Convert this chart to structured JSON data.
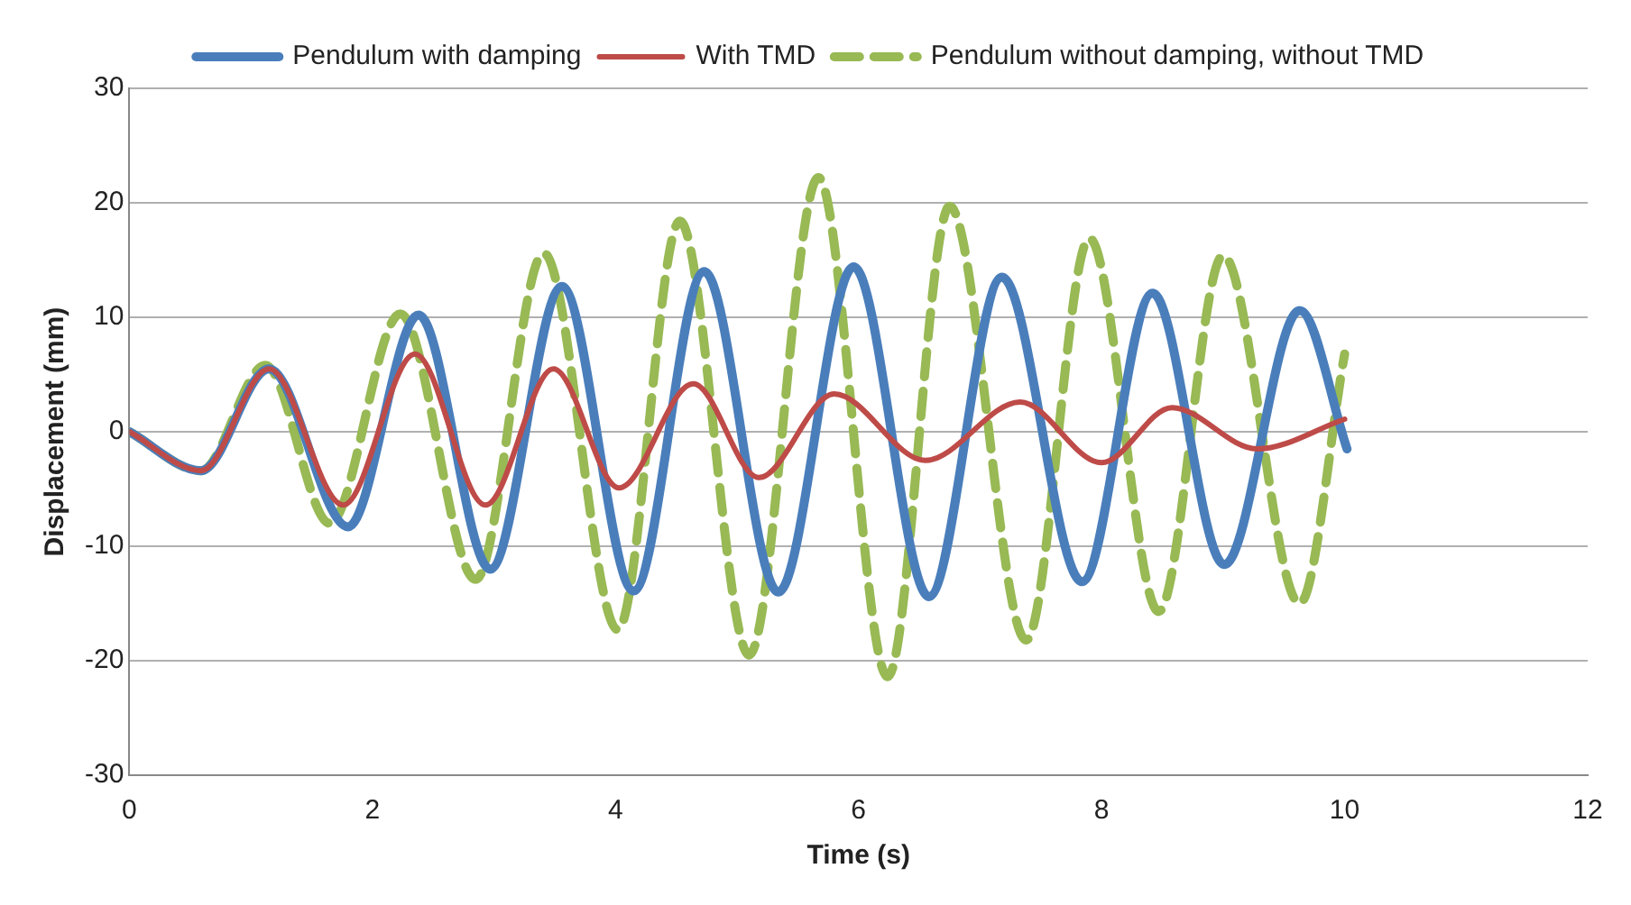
{
  "chart_data": {
    "type": "line",
    "xlabel": "Time (s)",
    "ylabel": "Displacement (mm)",
    "xlim": [
      0,
      12
    ],
    "xticks": [
      0,
      2,
      4,
      6,
      8,
      10,
      12
    ],
    "ylim": [
      -30,
      30
    ],
    "yticks": [
      -30,
      -20,
      -10,
      0,
      10,
      20,
      30
    ],
    "grid": "y",
    "legend": "top",
    "marker": "none",
    "series": [
      {
        "name": "Pendulum with damping",
        "color": "#4a7ebb",
        "line_style": "solid",
        "x": [
          0,
          0.59,
          1.15,
          1.8,
          2.38,
          2.97,
          3.56,
          4.15,
          4.73,
          5.34,
          5.96,
          6.58,
          7.18,
          7.84,
          8.42,
          9.01,
          9.63,
          10.02
        ],
        "values": [
          0,
          -3.4,
          5.5,
          -8.3,
          10.2,
          -12,
          12.7,
          -13.9,
          14,
          -14,
          14.4,
          -14.4,
          13.5,
          -13.1,
          12.1,
          -11.6,
          10.6,
          -1.5
        ]
      },
      {
        "name": "With TMD",
        "color": "#be4b48",
        "line_style": "solid",
        "x": [
          0,
          0.59,
          1.15,
          1.76,
          2.35,
          2.93,
          3.49,
          4.03,
          4.64,
          5.18,
          5.8,
          6.55,
          7.33,
          8.0,
          8.58,
          9.28,
          10.0
        ],
        "values": [
          0,
          -3.4,
          5.5,
          -6.4,
          6.8,
          -6.4,
          5.5,
          -4.9,
          4.2,
          -4,
          3.3,
          -2.5,
          2.6,
          -2.7,
          2.1,
          -1.5,
          1.1
        ]
      },
      {
        "name": "Pendulum without damping, without TMD",
        "color": "#98b954",
        "line_style": "dashed",
        "x": [
          0,
          0.59,
          1.12,
          1.65,
          2.23,
          2.85,
          3.41,
          4.02,
          4.53,
          5.1,
          5.67,
          6.24,
          6.75,
          7.38,
          7.9,
          8.47,
          9.0,
          9.63,
          10.0
        ],
        "values": [
          0,
          -3.4,
          5.8,
          -8,
          10.3,
          -12.9,
          15.6,
          -17.3,
          18.4,
          -19.5,
          22.2,
          -21.4,
          19.7,
          -18.2,
          16.9,
          -15.7,
          15.4,
          -15,
          6.8
        ]
      }
    ]
  }
}
